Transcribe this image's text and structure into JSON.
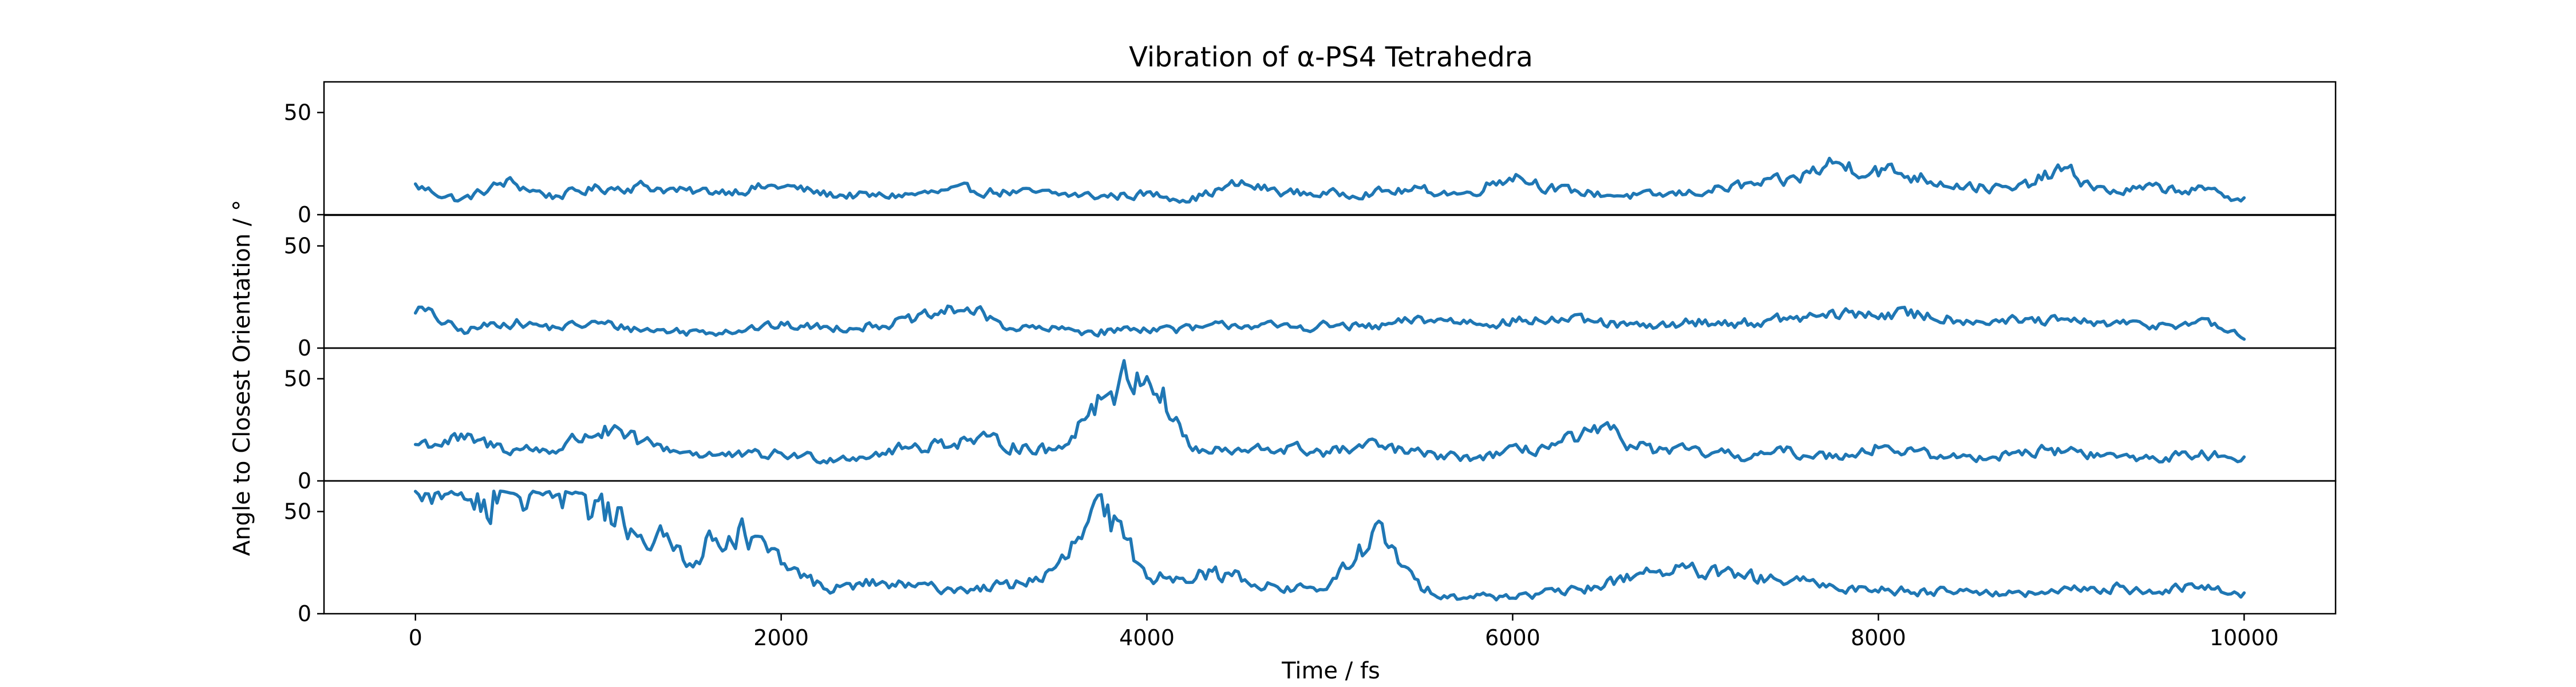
{
  "chart_data": {
    "type": "line",
    "title": "Vibration of α-PS4 Tetrahedra",
    "xlabel": "Time / fs",
    "ylabel": "Angle to Closest Orientation / °",
    "xlim": [
      -500,
      10500
    ],
    "ylim": [
      0,
      65
    ],
    "xticks": [
      0,
      2000,
      4000,
      6000,
      8000,
      10000
    ],
    "xtick_labels": [
      "0",
      "2000",
      "4000",
      "6000",
      "8000",
      "10000"
    ],
    "yticks": [
      0,
      50
    ],
    "ytick_labels": [
      "0",
      "50"
    ],
    "grid": false,
    "legend": "none",
    "color": "#1f77b4",
    "x": [
      0,
      250,
      500,
      750,
      1000,
      1250,
      1500,
      1750,
      2000,
      2250,
      2500,
      2750,
      3000,
      3250,
      3500,
      3750,
      4000,
      4250,
      4500,
      4750,
      5000,
      5250,
      5500,
      5750,
      6000,
      6250,
      6500,
      6750,
      7000,
      7250,
      7500,
      7750,
      8000,
      8250,
      8500,
      8750,
      9000,
      9250,
      9500,
      9750,
      10000
    ],
    "panels": [
      {
        "values": [
          14,
          7,
          16,
          9,
          13,
          14,
          11,
          12,
          14,
          10,
          9,
          10,
          12,
          11,
          10,
          9,
          10,
          8,
          15,
          11,
          10,
          11,
          12,
          10,
          20,
          12,
          10,
          9,
          11,
          14,
          16,
          25,
          22,
          18,
          14,
          12,
          22,
          11,
          13,
          12,
          8
        ]
      },
      {
        "values": [
          20,
          8,
          13,
          10,
          12,
          9,
          8,
          9,
          11,
          10,
          11,
          14,
          20,
          10,
          9,
          8,
          10,
          9,
          12,
          10,
          11,
          10,
          14,
          13,
          13,
          14,
          12,
          10,
          13,
          12,
          14,
          16,
          17,
          16,
          14,
          13,
          13,
          12,
          11,
          13,
          6
        ]
      },
      {
        "values": [
          18,
          20,
          16,
          15,
          25,
          18,
          14,
          12,
          13,
          11,
          13,
          17,
          20,
          18,
          14,
          42,
          55,
          15,
          14,
          16,
          14,
          17,
          13,
          11,
          14,
          18,
          24,
          15,
          14,
          12,
          14,
          12,
          17,
          13,
          11,
          14,
          15,
          12,
          11,
          13,
          12
        ]
      },
      {
        "values": [
          59,
          55,
          60,
          57,
          52,
          40,
          28,
          42,
          24,
          12,
          15,
          13,
          12,
          14,
          20,
          52,
          18,
          20,
          18,
          12,
          13,
          40,
          12,
          8,
          9,
          10,
          14,
          22,
          20,
          18,
          16,
          13,
          12,
          11,
          12,
          9,
          11,
          13,
          11,
          13,
          10
        ]
      }
    ]
  }
}
